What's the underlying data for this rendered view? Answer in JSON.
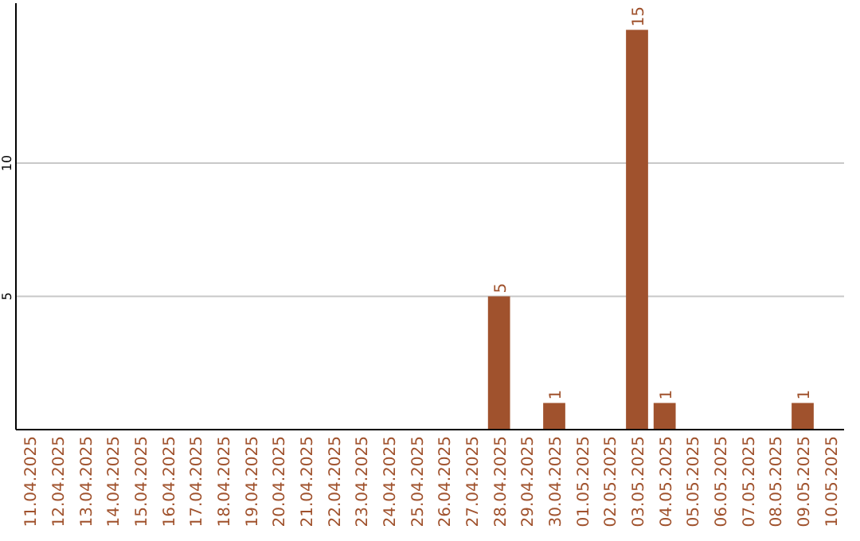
{
  "chart_data": {
    "type": "bar",
    "categories": [
      "11.04.2025",
      "12.04.2025",
      "13.04.2025",
      "14.04.2025",
      "15.04.2025",
      "16.04.2025",
      "17.04.2025",
      "18.04.2025",
      "19.04.2025",
      "20.04.2025",
      "21.04.2025",
      "22.04.2025",
      "23.04.2025",
      "24.04.2025",
      "25.04.2025",
      "26.04.2025",
      "27.04.2025",
      "28.04.2025",
      "29.04.2025",
      "30.04.2025",
      "01.05.2025",
      "02.05.2025",
      "03.05.2025",
      "04.05.2025",
      "05.05.2025",
      "06.05.2025",
      "07.05.2025",
      "08.05.2025",
      "09.05.2025",
      "10.05.2025"
    ],
    "values": [
      0,
      0,
      0,
      0,
      0,
      0,
      0,
      0,
      0,
      0,
      0,
      0,
      0,
      0,
      0,
      0,
      0,
      5,
      0,
      1,
      0,
      0,
      15,
      1,
      0,
      0,
      0,
      0,
      1,
      0
    ],
    "value_labels": [
      null,
      null,
      null,
      null,
      null,
      null,
      null,
      null,
      null,
      null,
      null,
      null,
      null,
      null,
      null,
      null,
      null,
      "5",
      null,
      "1",
      null,
      null,
      "15",
      "1",
      null,
      null,
      null,
      null,
      "1",
      null
    ],
    "color": "#a0522d",
    "ylim": [
      0,
      16
    ],
    "yticks": [
      5,
      10
    ],
    "grid": "y"
  }
}
